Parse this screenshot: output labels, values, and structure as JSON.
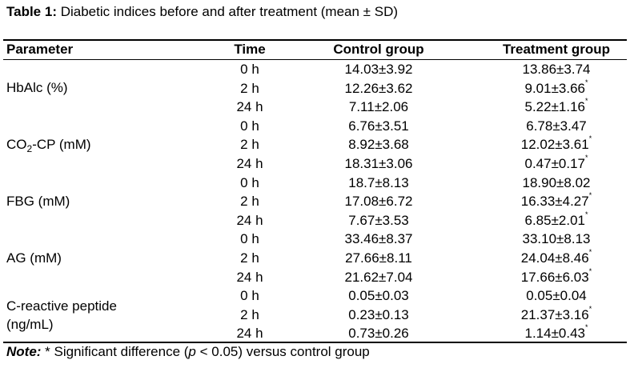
{
  "caption": {
    "label": "Table 1:",
    "text": " Diabetic indices before and after treatment (mean ± SD)"
  },
  "headers": {
    "parameter": "Parameter",
    "time": "Time",
    "control": "Control group",
    "treatment": "Treatment group"
  },
  "params": {
    "hba1c": "HbAlc (%)",
    "co2_main": "CO",
    "co2_sub": "2",
    "co2_rest": "-CP (mM)",
    "fbg": "FBG (mM)",
    "ag": "AG (mM)",
    "crp_line1": "C-reactive peptide",
    "crp_line2": "(ng/mL)"
  },
  "rows": [
    {
      "time": "0 h",
      "control": "14.03±3.92",
      "treatment": "13.86±3.74",
      "sig": ""
    },
    {
      "time": "2 h",
      "control": "12.26±3.62",
      "treatment": "9.01±3.66",
      "sig": "*"
    },
    {
      "time": "24 h",
      "control": "7.11±2.06",
      "treatment": "5.22±1.16",
      "sig": "*"
    },
    {
      "time": "0 h",
      "control": "6.76±3.51",
      "treatment": "6.78±3.47",
      "sig": ""
    },
    {
      "time": "2 h",
      "control": "8.92±3.68",
      "treatment": "12.02±3.61",
      "sig": "*"
    },
    {
      "time": "24 h",
      "control": "18.31±3.06",
      "treatment": "0.47±0.17",
      "sig": "*"
    },
    {
      "time": "0 h",
      "control": "18.7±8.13",
      "treatment": "18.90±8.02",
      "sig": ""
    },
    {
      "time": "2 h",
      "control": "17.08±6.72",
      "treatment": "16.33±4.27",
      "sig": "*"
    },
    {
      "time": "24 h",
      "control": "7.67±3.53",
      "treatment": "6.85±2.01",
      "sig": "*"
    },
    {
      "time": "0 h",
      "control": "33.46±8.37",
      "treatment": "33.10±8.13",
      "sig": ""
    },
    {
      "time": "2 h",
      "control": "27.66±8.11",
      "treatment": "24.04±8.46",
      "sig": "*"
    },
    {
      "time": "24 h",
      "control": "21.62±7.04",
      "treatment": "17.66±6.03",
      "sig": "*"
    },
    {
      "time": "0 h",
      "control": "0.05±0.03",
      "treatment": "0.05±0.04",
      "sig": ""
    },
    {
      "time": "2 h",
      "control": "0.23±0.13",
      "treatment": "21.37±3.16",
      "sig": "*"
    },
    {
      "time": "24 h",
      "control": "0.73±0.26",
      "treatment": "1.14±0.43",
      "sig": "*"
    }
  ],
  "note": {
    "label": "Note:",
    "text_before": " * Significant difference (",
    "p": "p",
    "text_after": " < 0.05) versus control group"
  }
}
